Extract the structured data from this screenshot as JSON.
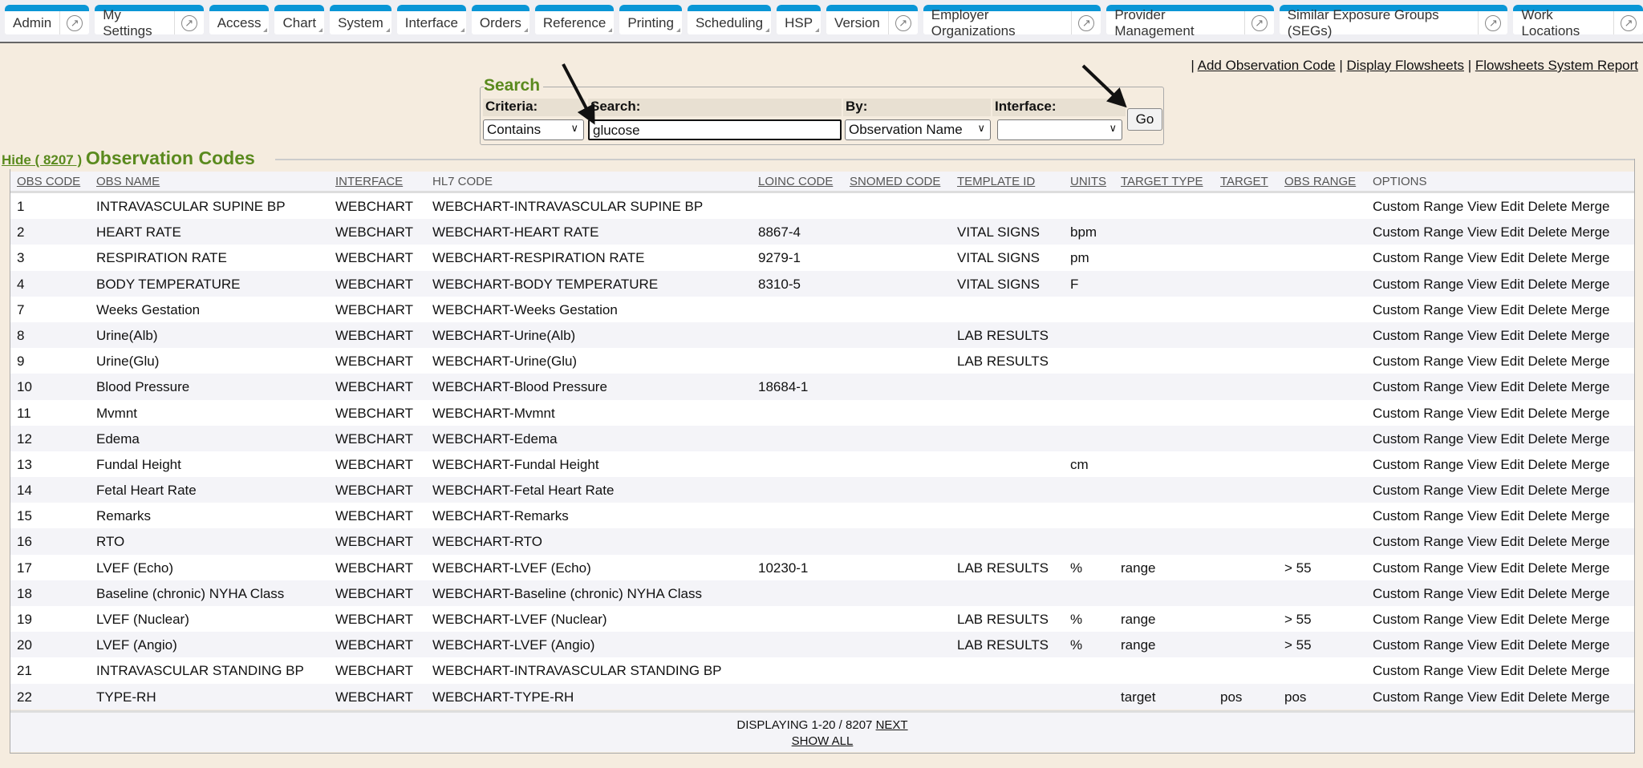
{
  "nav": {
    "tabs": [
      {
        "label": "Admin",
        "ext": true
      },
      {
        "label": "My Settings",
        "ext": true
      },
      {
        "label": "Access",
        "dd": true
      },
      {
        "label": "Chart",
        "dd": true
      },
      {
        "label": "System",
        "dd": true
      },
      {
        "label": "Interface",
        "dd": true
      },
      {
        "label": "Orders",
        "dd": true
      },
      {
        "label": "Reference",
        "dd": true
      },
      {
        "label": "Printing",
        "dd": true
      },
      {
        "label": "Scheduling",
        "dd": true
      },
      {
        "label": "HSP",
        "dd": true
      },
      {
        "label": "Version",
        "ext": true
      },
      {
        "label": "Employer Organizations",
        "ext": true
      },
      {
        "label": "Provider Management",
        "ext": true
      },
      {
        "label": "Similar Exposure Groups (SEGs)",
        "ext": true
      },
      {
        "label": "Work Locations",
        "ext": true
      }
    ],
    "ext_icon": "external-link-icon"
  },
  "top_links": {
    "sep": "|",
    "add": "Add Observation Code",
    "display": "Display Flowsheets",
    "report": "Flowsheets System Report"
  },
  "search": {
    "legend": "Search",
    "criteria_label": "Criteria:",
    "criteria_value": "Contains",
    "search_label": "Search:",
    "search_value": "glucose",
    "by_label": "By:",
    "by_value": "Observation Name",
    "interface_label": "Interface:",
    "interface_value": "",
    "go": "Go"
  },
  "obs": {
    "hide": "Hide ( 8207 )",
    "title": "Observation Codes",
    "columns": [
      "OBS CODE",
      "OBS NAME",
      "INTERFACE",
      "HL7 CODE",
      "LOINC CODE",
      "SNOMED CODE",
      "TEMPLATE ID",
      "UNITS",
      "TARGET TYPE",
      "TARGET",
      "OBS RANGE",
      "OPTIONS"
    ],
    "options": [
      "Custom Range",
      "View",
      "Edit",
      "Delete",
      "Merge"
    ],
    "rows": [
      [
        "1",
        "INTRAVASCULAR SUPINE BP",
        "WEBCHART",
        "WEBCHART-INTRAVASCULAR SUPINE BP",
        "",
        "",
        "",
        "",
        "",
        "",
        ""
      ],
      [
        "2",
        "HEART RATE",
        "WEBCHART",
        "WEBCHART-HEART RATE",
        "8867-4",
        "",
        "VITAL SIGNS",
        "bpm",
        "",
        "",
        ""
      ],
      [
        "3",
        "RESPIRATION RATE",
        "WEBCHART",
        "WEBCHART-RESPIRATION RATE",
        "9279-1",
        "",
        "VITAL SIGNS",
        "pm",
        "",
        "",
        ""
      ],
      [
        "4",
        "BODY TEMPERATURE",
        "WEBCHART",
        "WEBCHART-BODY TEMPERATURE",
        "8310-5",
        "",
        "VITAL SIGNS",
        "F",
        "",
        "",
        ""
      ],
      [
        "7",
        "Weeks Gestation",
        "WEBCHART",
        "WEBCHART-Weeks Gestation",
        "",
        "",
        "",
        "",
        "",
        "",
        ""
      ],
      [
        "8",
        "Urine(Alb)",
        "WEBCHART",
        "WEBCHART-Urine(Alb)",
        "",
        "",
        "LAB RESULTS",
        "",
        "",
        "",
        ""
      ],
      [
        "9",
        "Urine(Glu)",
        "WEBCHART",
        "WEBCHART-Urine(Glu)",
        "",
        "",
        "LAB RESULTS",
        "",
        "",
        "",
        ""
      ],
      [
        "10",
        "Blood Pressure",
        "WEBCHART",
        "WEBCHART-Blood Pressure",
        "18684-1",
        "",
        "",
        "",
        "",
        "",
        ""
      ],
      [
        "11",
        "Mvmnt",
        "WEBCHART",
        "WEBCHART-Mvmnt",
        "",
        "",
        "",
        "",
        "",
        "",
        ""
      ],
      [
        "12",
        "Edema",
        "WEBCHART",
        "WEBCHART-Edema",
        "",
        "",
        "",
        "",
        "",
        "",
        ""
      ],
      [
        "13",
        "Fundal Height",
        "WEBCHART",
        "WEBCHART-Fundal Height",
        "",
        "",
        "",
        "cm",
        "",
        "",
        ""
      ],
      [
        "14",
        "Fetal Heart Rate",
        "WEBCHART",
        "WEBCHART-Fetal Heart Rate",
        "",
        "",
        "",
        "",
        "",
        "",
        ""
      ],
      [
        "15",
        "Remarks",
        "WEBCHART",
        "WEBCHART-Remarks",
        "",
        "",
        "",
        "",
        "",
        "",
        ""
      ],
      [
        "16",
        "RTO",
        "WEBCHART",
        "WEBCHART-RTO",
        "",
        "",
        "",
        "",
        "",
        "",
        ""
      ],
      [
        "17",
        "LVEF (Echo)",
        "WEBCHART",
        "WEBCHART-LVEF (Echo)",
        "10230-1",
        "",
        "LAB RESULTS",
        "%",
        "range",
        "",
        "> 55"
      ],
      [
        "18",
        "Baseline (chronic) NYHA Class",
        "WEBCHART",
        "WEBCHART-Baseline (chronic) NYHA Class",
        "",
        "",
        "",
        "",
        "",
        "",
        ""
      ],
      [
        "19",
        "LVEF (Nuclear)",
        "WEBCHART",
        "WEBCHART-LVEF (Nuclear)",
        "",
        "",
        "LAB RESULTS",
        "%",
        "range",
        "",
        "> 55"
      ],
      [
        "20",
        "LVEF (Angio)",
        "WEBCHART",
        "WEBCHART-LVEF (Angio)",
        "",
        "",
        "LAB RESULTS",
        "%",
        "range",
        "",
        "> 55"
      ],
      [
        "21",
        "INTRAVASCULAR STANDING BP",
        "WEBCHART",
        "WEBCHART-INTRAVASCULAR STANDING BP",
        "",
        "",
        "",
        "",
        "",
        "",
        ""
      ],
      [
        "22",
        "TYPE-RH",
        "WEBCHART",
        "WEBCHART-TYPE-RH",
        "",
        "",
        "",
        "",
        "target",
        "pos",
        "pos"
      ]
    ],
    "footer": {
      "displaying": "DISPLAYING 1-20 / 8207",
      "next": "NEXT",
      "show_all": "SHOW ALL"
    }
  },
  "colors": {
    "tab_accent": "#0a96d6",
    "section_title": "#5a8a1e",
    "background": "#f5ecdf"
  }
}
